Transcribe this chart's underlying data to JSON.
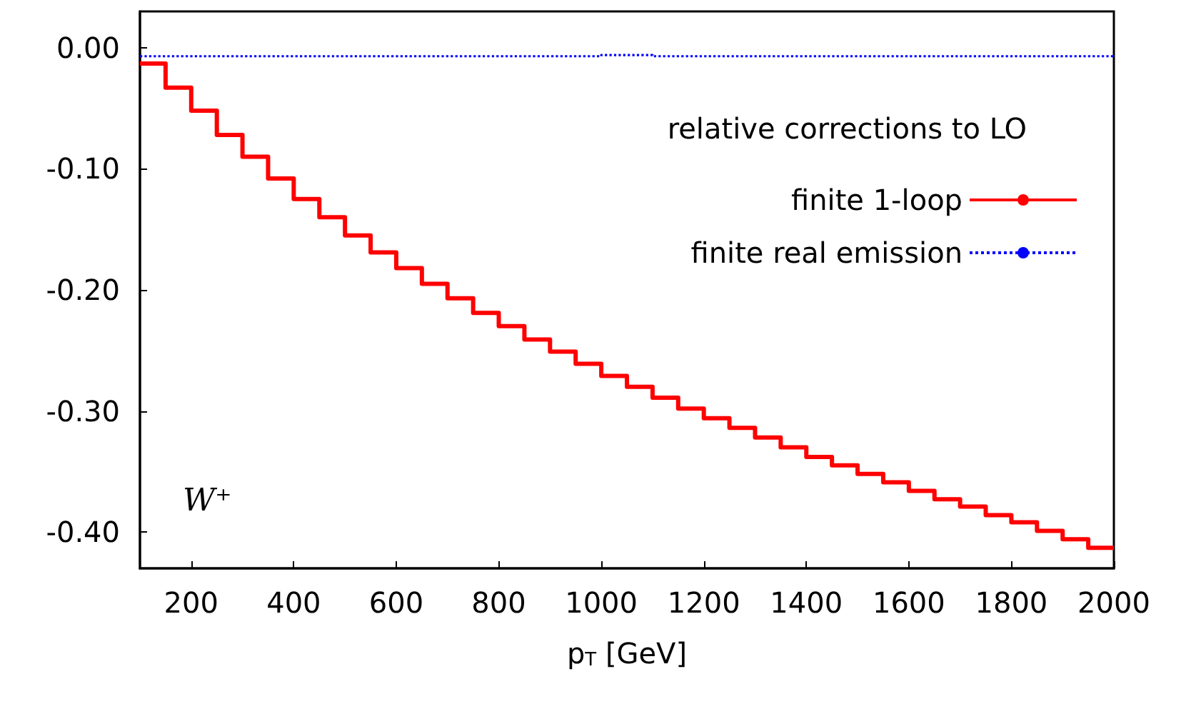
{
  "chart_data": {
    "type": "step",
    "xlabel": "p$_{T}$ [GeV]",
    "legend_title": "relative corrections to LO",
    "annotations": [
      "W⁺"
    ],
    "xlim": [
      100,
      2000
    ],
    "xticks": [
      200,
      400,
      600,
      800,
      1000,
      1200,
      1400,
      1600,
      1800,
      2000
    ],
    "ylim": [
      -0.43,
      0.03
    ],
    "yticks": [
      {
        "value": 0,
        "label": "0.00"
      },
      {
        "value": -0.1,
        "label": "-0.10"
      },
      {
        "value": -0.2,
        "label": "-0.20"
      },
      {
        "value": -0.3,
        "label": "-0.30"
      },
      {
        "value": -0.4,
        "label": "-0.40"
      }
    ],
    "legend": "top right",
    "grid": false,
    "series": [
      {
        "name": "finite 1-loop",
        "color": "#ff0000",
        "line_style": "solid",
        "x": [
          100,
          150,
          200,
          250,
          300,
          350,
          400,
          450,
          500,
          550,
          600,
          650,
          700,
          750,
          800,
          850,
          900,
          950,
          1000,
          1050,
          1100,
          1150,
          1200,
          1250,
          1300,
          1350,
          1400,
          1450,
          1500,
          1550,
          1600,
          1650,
          1700,
          1750,
          1800,
          1850,
          1900,
          1950,
          2000
        ],
        "values": [
          -0.013,
          -0.033,
          -0.052,
          -0.072,
          -0.09,
          -0.108,
          -0.125,
          -0.14,
          -0.155,
          -0.169,
          -0.182,
          -0.195,
          -0.207,
          -0.219,
          -0.23,
          -0.241,
          -0.251,
          -0.261,
          -0.271,
          -0.28,
          -0.289,
          -0.298,
          -0.306,
          -0.314,
          -0.322,
          -0.33,
          -0.338,
          -0.345,
          -0.352,
          -0.359,
          -0.366,
          -0.373,
          -0.379,
          -0.386,
          -0.392,
          -0.399,
          -0.406,
          -0.413,
          -0.413
        ]
      },
      {
        "name": "finite real emission",
        "color": "#0000ff",
        "line_style": "dotted",
        "x": [
          100,
          200,
          300,
          400,
          500,
          600,
          700,
          800,
          900,
          1000,
          1100,
          1200,
          1300,
          1400,
          1500,
          1600,
          1700,
          1800,
          1900,
          2000
        ],
        "values": [
          -0.007,
          -0.007,
          -0.007,
          -0.007,
          -0.007,
          -0.007,
          -0.007,
          -0.007,
          -0.007,
          -0.006,
          -0.007,
          -0.007,
          -0.007,
          -0.007,
          -0.007,
          -0.007,
          -0.007,
          -0.007,
          -0.007,
          -0.007
        ]
      }
    ]
  }
}
